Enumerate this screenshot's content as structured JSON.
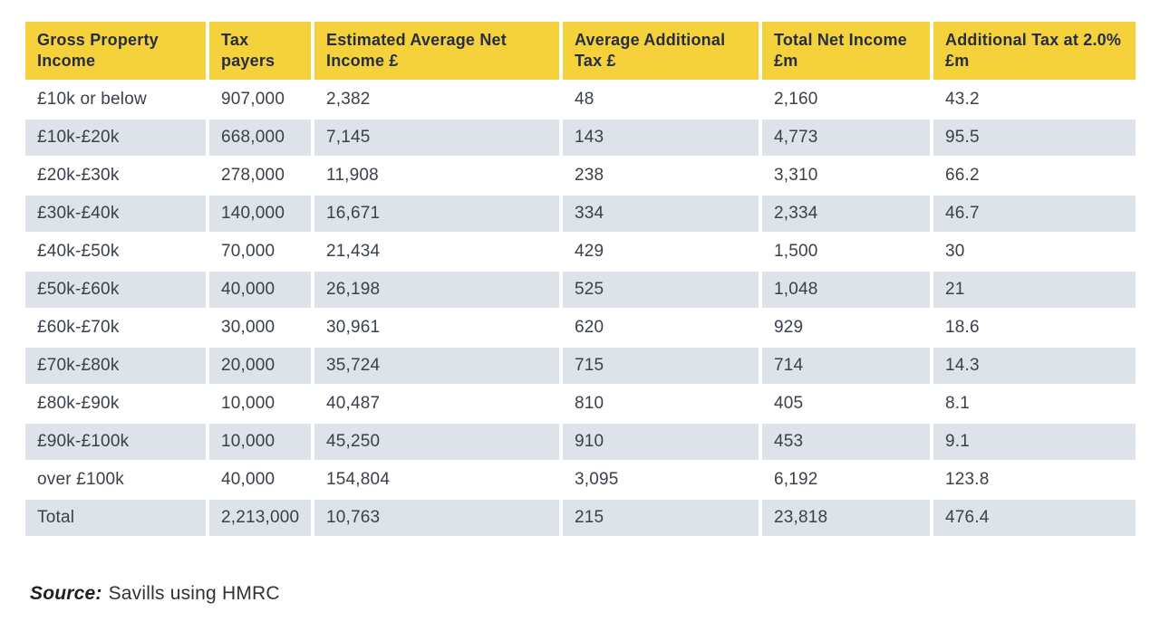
{
  "colors": {
    "header_bg": "#F5D13B",
    "header_text": "#252E44",
    "row_alt_bg": "#DEE2E9",
    "body_text": "#3A414C",
    "page_bg": "#FFFFFF"
  },
  "table": {
    "columns": [
      "Gross Property Income",
      "Tax payers",
      "Estimated Average Net Income £",
      "Average Additional Tax £",
      "Total Net Income £m",
      "Additional Tax at 2.0% £m"
    ],
    "rows": [
      [
        "£10k or below",
        "907,000",
        "2,382",
        "48",
        "2,160",
        "43.2"
      ],
      [
        "£10k-£20k",
        "668,000",
        "7,145",
        "143",
        "4,773",
        "95.5"
      ],
      [
        "£20k-£30k",
        "278,000",
        "11,908",
        "238",
        "3,310",
        "66.2"
      ],
      [
        "£30k-£40k",
        "140,000",
        "16,671",
        "334",
        "2,334",
        "46.7"
      ],
      [
        "£40k-£50k",
        "70,000",
        "21,434",
        "429",
        "1,500",
        "30"
      ],
      [
        "£50k-£60k",
        "40,000",
        "26,198",
        "525",
        "1,048",
        "21"
      ],
      [
        "£60k-£70k",
        "30,000",
        "30,961",
        "620",
        "929",
        "18.6"
      ],
      [
        "£70k-£80k",
        "20,000",
        "35,724",
        "715",
        "714",
        "14.3"
      ],
      [
        "£80k-£90k",
        "10,000",
        "40,487",
        "810",
        "405",
        "8.1"
      ],
      [
        "£90k-£100k",
        "10,000",
        "45,250",
        "910",
        "453",
        "9.1"
      ],
      [
        "over £100k",
        "40,000",
        "154,804",
        "3,095",
        "6,192",
        "123.8"
      ],
      [
        "Total",
        "2,213,000",
        "10,763",
        "215",
        "23,818",
        "476.4"
      ]
    ]
  },
  "chart_data": {
    "type": "table",
    "title": "",
    "columns": [
      "Gross Property Income",
      "Tax payers",
      "Estimated Average Net Income £",
      "Average Additional Tax £",
      "Total Net Income £m",
      "Additional Tax at 2.0% £m"
    ],
    "rows": [
      [
        "£10k or below",
        907000,
        2382,
        48,
        2160,
        43.2
      ],
      [
        "£10k-£20k",
        668000,
        7145,
        143,
        4773,
        95.5
      ],
      [
        "£20k-£30k",
        278000,
        11908,
        238,
        3310,
        66.2
      ],
      [
        "£30k-£40k",
        140000,
        16671,
        334,
        2334,
        46.7
      ],
      [
        "£40k-£50k",
        70000,
        21434,
        429,
        1500,
        30
      ],
      [
        "£50k-£60k",
        40000,
        26198,
        525,
        1048,
        21
      ],
      [
        "£60k-£70k",
        30000,
        30961,
        620,
        929,
        18.6
      ],
      [
        "£70k-£80k",
        20000,
        35724,
        715,
        714,
        14.3
      ],
      [
        "£80k-£90k",
        10000,
        40487,
        810,
        405,
        8.1
      ],
      [
        "£90k-£100k",
        10000,
        45250,
        910,
        453,
        9.1
      ],
      [
        "over £100k",
        40000,
        154804,
        3095,
        6192,
        123.8
      ],
      [
        "Total",
        2213000,
        10763,
        215,
        23818,
        476.4
      ]
    ]
  },
  "source": {
    "label": "Source:",
    "text": "Savills using HMRC"
  }
}
